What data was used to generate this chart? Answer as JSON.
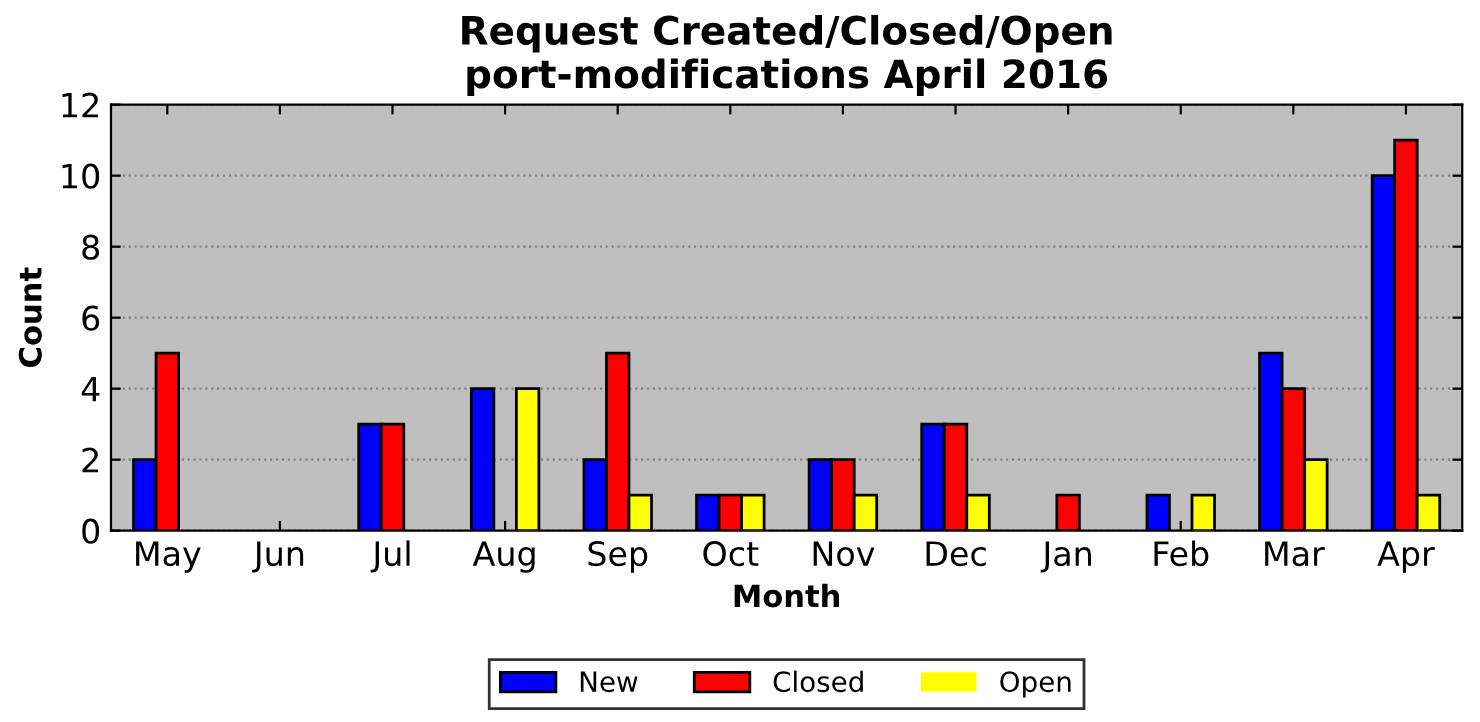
{
  "chart_data": {
    "type": "bar",
    "title": "Request Created/Closed/Open\nport-modifications April 2016",
    "xlabel": "Month",
    "ylabel": "Count",
    "categories": [
      "May",
      "Jun",
      "Jul",
      "Aug",
      "Sep",
      "Oct",
      "Nov",
      "Dec",
      "Jan",
      "Feb",
      "Mar",
      "Apr"
    ],
    "series": [
      {
        "name": "New",
        "color": "#0000ff",
        "values": [
          2,
          0,
          3,
          4,
          2,
          1,
          2,
          3,
          0,
          1,
          5,
          10
        ]
      },
      {
        "name": "Closed",
        "color": "#ff0000",
        "values": [
          5,
          0,
          3,
          0,
          5,
          1,
          2,
          3,
          1,
          0,
          4,
          11
        ]
      },
      {
        "name": "Open",
        "color": "#ffff00",
        "values": [
          0,
          0,
          0,
          4,
          1,
          1,
          1,
          1,
          0,
          1,
          2,
          1
        ]
      }
    ],
    "ylim": [
      0,
      12
    ],
    "yticks": [
      0,
      2,
      4,
      6,
      8,
      10,
      12
    ],
    "grid": "y",
    "legend": "bottom"
  }
}
